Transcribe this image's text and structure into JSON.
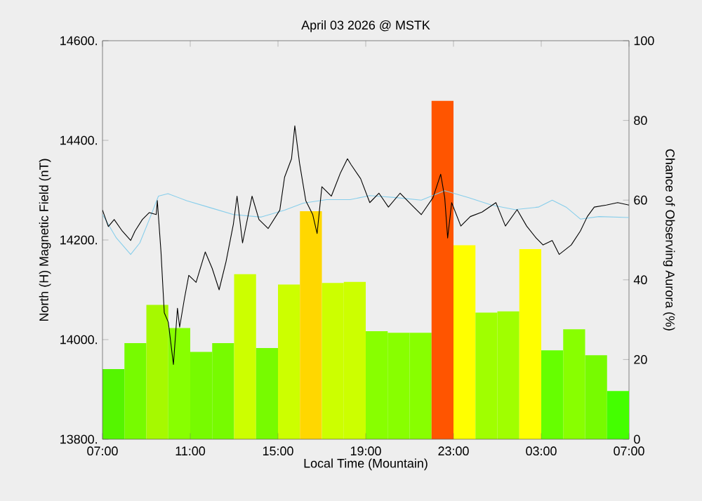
{
  "chart_data": {
    "type": "line",
    "title": "April 03 2026 @ MSTK",
    "xlabel": "Local Time (Mountain)",
    "ylabel": "North (H) Magnetic Field (nT)",
    "y2label": "Chance of Observing Aurora (%)",
    "xlim": [
      "2026-04-03T07:00",
      "2026-04-04T07:00"
    ],
    "xticks": [
      {
        "value": "2026-04-03T07:00",
        "label": "07:00"
      },
      {
        "value": "2026-04-03T11:00",
        "label": "11:00"
      },
      {
        "value": "2026-04-03T15:00",
        "label": "15:00"
      },
      {
        "value": "2026-04-03T19:00",
        "label": "19:00"
      },
      {
        "value": "2026-04-03T23:00",
        "label": "23:00"
      },
      {
        "value": "2026-04-04T03:00",
        "label": "03:00"
      },
      {
        "value": "2026-04-04T07:00",
        "label": "07:00"
      }
    ],
    "ylim": [
      13800,
      14600
    ],
    "yticks": [
      {
        "value": 13800,
        "label": "13800."
      },
      {
        "value": 14000,
        "label": "14000."
      },
      {
        "value": 14200,
        "label": "14200."
      },
      {
        "value": 14400,
        "label": "14400."
      },
      {
        "value": 14600,
        "label": "14600."
      }
    ],
    "y2lim": [
      0,
      100
    ],
    "y2ticks": [
      0,
      20,
      40,
      60,
      80,
      100
    ],
    "series": [
      {
        "type": "bar",
        "axis": "y2",
        "x": [
          "2026-04-03T07:30",
          "2026-04-03T08:30",
          "2026-04-03T09:30",
          "2026-04-03T10:30",
          "2026-04-03T11:30",
          "2026-04-03T12:30",
          "2026-04-03T13:30",
          "2026-04-03T14:30",
          "2026-04-03T15:30",
          "2026-04-03T16:30",
          "2026-04-03T17:30",
          "2026-04-03T18:30",
          "2026-04-03T19:30",
          "2026-04-03T20:30",
          "2026-04-03T21:30",
          "2026-04-03T22:30",
          "2026-04-03T23:30",
          "2026-04-04T00:30",
          "2026-04-04T01:30",
          "2026-04-04T02:30",
          "2026-04-04T03:30",
          "2026-04-04T04:30",
          "2026-04-04T05:30",
          "2026-04-04T06:30"
        ],
        "values": [
          17.6,
          24.1,
          33.7,
          27.9,
          21.9,
          24.1,
          41.4,
          22.9,
          38.8,
          57.2,
          39.2,
          39.5,
          27.1,
          26.7,
          26.7,
          84.9,
          48.7,
          31.8,
          32.1,
          47.7,
          22.3,
          27.6,
          21.1,
          12.1
        ],
        "colors": [
          "#55f500",
          "#77fb00",
          "#a6f900",
          "#88ff00",
          "#77fb00",
          "#77fb00",
          "#ccff00",
          "#77fb00",
          "#ccff00",
          "#ffd700",
          "#ccff00",
          "#ccff00",
          "#88ff00",
          "#88ff00",
          "#88ff00",
          "#ff5500",
          "#ffff00",
          "#a0ff00",
          "#a0ff00",
          "#ffff00",
          "#66ff00",
          "#88ff00",
          "#77fb00",
          "#44ff00"
        ]
      },
      {
        "color": "#87ceeb",
        "x": [
          "2026-04-03T07:00",
          "2026-04-03T07:38",
          "2026-04-03T08:17",
          "2026-04-03T08:42",
          "2026-04-03T09:08",
          "2026-04-03T09:33",
          "2026-04-03T09:59",
          "2026-04-03T10:50",
          "2026-04-03T11:54",
          "2026-04-03T12:58",
          "2026-04-03T14:14",
          "2026-04-03T15:18",
          "2026-04-03T16:09",
          "2026-04-03T17:13",
          "2026-04-03T18:17",
          "2026-04-03T19:11",
          "2026-04-03T20:24",
          "2026-04-03T21:32",
          "2026-04-03T22:36",
          "2026-04-03T23:42",
          "2026-04-04T00:44",
          "2026-04-04T01:48",
          "2026-04-04T02:52",
          "2026-04-04T03:30",
          "2026-04-04T04:08",
          "2026-04-04T04:47",
          "2026-04-04T05:38",
          "2026-04-04T07:00"
        ],
        "values": [
          14251,
          14204,
          14171,
          14194,
          14241,
          14288,
          14293,
          14279,
          14265,
          14251,
          14246,
          14260,
          14274,
          14281,
          14281,
          14289,
          14285,
          14280,
          14299,
          14285,
          14270,
          14261,
          14266,
          14280,
          14266,
          14242,
          14247,
          14245
        ]
      },
      {
        "color": "#000000",
        "x": [
          "2026-04-03T07:00",
          "2026-04-03T07:16",
          "2026-04-03T07:32",
          "2026-04-03T07:54",
          "2026-04-03T08:17",
          "2026-04-03T08:29",
          "2026-04-03T08:49",
          "2026-04-03T09:08",
          "2026-04-03T09:27",
          "2026-04-03T09:30",
          "2026-04-03T09:40",
          "2026-04-03T09:49",
          "2026-04-03T10:00",
          "2026-04-03T10:14",
          "2026-04-03T10:25",
          "2026-04-03T10:31",
          "2026-04-03T10:44",
          "2026-04-03T10:56",
          "2026-04-03T11:16",
          "2026-04-03T11:41",
          "2026-04-03T12:00",
          "2026-04-03T12:19",
          "2026-04-03T12:38",
          "2026-04-03T12:58",
          "2026-04-03T13:08",
          "2026-04-03T13:23",
          "2026-04-03T13:49",
          "2026-04-03T14:08",
          "2026-04-03T14:33",
          "2026-04-03T15:05",
          "2026-04-03T15:18",
          "2026-04-03T15:37",
          "2026-04-03T15:46",
          "2026-04-03T15:59",
          "2026-04-03T16:16",
          "2026-04-03T16:35",
          "2026-04-03T16:47",
          "2026-04-03T17:00",
          "2026-04-03T17:26",
          "2026-04-03T17:51",
          "2026-04-03T18:10",
          "2026-04-03T18:20",
          "2026-04-03T18:46",
          "2026-04-03T19:11",
          "2026-04-03T19:36",
          "2026-04-03T20:02",
          "2026-04-03T20:34",
          "2026-04-03T21:06",
          "2026-04-03T21:32",
          "2026-04-03T22:04",
          "2026-04-03T22:25",
          "2026-04-03T22:36",
          "2026-04-03T22:44",
          "2026-04-03T22:55",
          "2026-04-03T23:20",
          "2026-04-03T23:46",
          "2026-04-04T00:18",
          "2026-04-04T00:56",
          "2026-04-04T01:22",
          "2026-04-04T01:54",
          "2026-04-04T02:20",
          "2026-04-04T02:46",
          "2026-04-04T03:05",
          "2026-04-04T03:30",
          "2026-04-04T03:49",
          "2026-04-04T04:22",
          "2026-04-04T04:47",
          "2026-04-04T05:06",
          "2026-04-04T05:25",
          "2026-04-04T05:58",
          "2026-04-04T06:29",
          "2026-04-04T07:00"
        ],
        "values": [
          14260,
          14227,
          14241,
          14218,
          14199,
          14218,
          14241,
          14255,
          14251,
          14279,
          14176,
          14054,
          14035,
          13950,
          14063,
          14025,
          14082,
          14129,
          14115,
          14176,
          14143,
          14100,
          14157,
          14232,
          14288,
          14194,
          14288,
          14241,
          14223,
          14260,
          14326,
          14363,
          14429,
          14354,
          14279,
          14251,
          14213,
          14307,
          14288,
          14335,
          14363,
          14351,
          14323,
          14275,
          14294,
          14266,
          14294,
          14270,
          14251,
          14285,
          14332,
          14285,
          14204,
          14275,
          14228,
          14247,
          14256,
          14275,
          14228,
          14261,
          14228,
          14204,
          14190,
          14199,
          14171,
          14190,
          14218,
          14247,
          14266,
          14270,
          14275,
          14270
        ]
      }
    ]
  }
}
